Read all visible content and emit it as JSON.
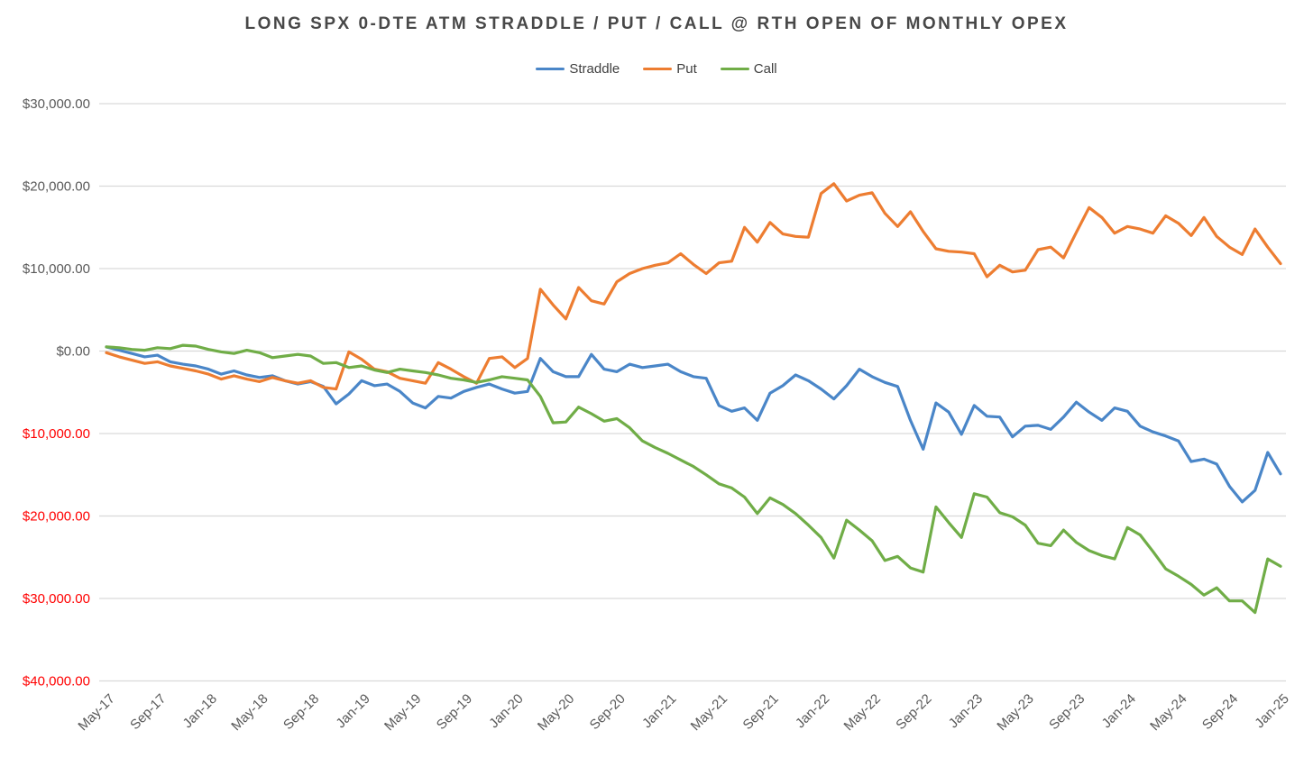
{
  "chart_data": {
    "type": "line",
    "title": "LONG SPX 0-DTE ATM STRADDLE / PUT / CALL @ RTH OPEN OF MONTHLY OPEX",
    "legend_position": "top",
    "grid": true,
    "colors": {
      "grid": "#d9d9d9",
      "axis_text": "#595959",
      "negative_axis_text": "#ff0000",
      "title_text": "#484848"
    },
    "y_axis": {
      "min": -40000,
      "max": 30000,
      "step": 10000,
      "ticks": [
        {
          "value": 30000,
          "label": "$30,000.00",
          "negative": false
        },
        {
          "value": 20000,
          "label": "$20,000.00",
          "negative": false
        },
        {
          "value": 10000,
          "label": "$10,000.00",
          "negative": false
        },
        {
          "value": 0,
          "label": "$0.00",
          "negative": false
        },
        {
          "value": -10000,
          "label": "$10,000.00",
          "negative": true
        },
        {
          "value": -20000,
          "label": "$20,000.00",
          "negative": true
        },
        {
          "value": -30000,
          "label": "$30,000.00",
          "negative": true
        },
        {
          "value": -40000,
          "label": "$40,000.00",
          "negative": true
        }
      ]
    },
    "x_axis": {
      "tick_every": 4,
      "categories": [
        "May-17",
        "Jun-17",
        "Jul-17",
        "Aug-17",
        "Sep-17",
        "Oct-17",
        "Nov-17",
        "Dec-17",
        "Jan-18",
        "Feb-18",
        "Mar-18",
        "Apr-18",
        "May-18",
        "Jun-18",
        "Jul-18",
        "Aug-18",
        "Sep-18",
        "Oct-18",
        "Nov-18",
        "Dec-18",
        "Jan-19",
        "Feb-19",
        "Mar-19",
        "Apr-19",
        "May-19",
        "Jun-19",
        "Jul-19",
        "Aug-19",
        "Sep-19",
        "Oct-19",
        "Nov-19",
        "Dec-19",
        "Jan-20",
        "Feb-20",
        "Mar-20",
        "Apr-20",
        "May-20",
        "Jun-20",
        "Jul-20",
        "Aug-20",
        "Sep-20",
        "Oct-20",
        "Nov-20",
        "Dec-20",
        "Jan-21",
        "Feb-21",
        "Mar-21",
        "Apr-21",
        "May-21",
        "Jun-21",
        "Jul-21",
        "Aug-21",
        "Sep-21",
        "Oct-21",
        "Nov-21",
        "Dec-21",
        "Jan-22",
        "Feb-22",
        "Mar-22",
        "Apr-22",
        "May-22",
        "Jun-22",
        "Jul-22",
        "Aug-22",
        "Sep-22",
        "Oct-22",
        "Nov-22",
        "Dec-22",
        "Jan-23",
        "Feb-23",
        "Mar-23",
        "Apr-23",
        "May-23",
        "Jun-23",
        "Jul-23",
        "Aug-23",
        "Sep-23",
        "Oct-23",
        "Nov-23",
        "Dec-23",
        "Jan-24",
        "Feb-24",
        "Mar-24",
        "Apr-24",
        "May-24",
        "Jun-24",
        "Jul-24",
        "Aug-24",
        "Sep-24",
        "Oct-24",
        "Nov-24",
        "Dec-24",
        "Jan-25"
      ]
    },
    "series": [
      {
        "name": "Straddle",
        "color": "#4a86c8",
        "values": [
          500,
          100,
          -300,
          -700,
          -500,
          -1300,
          -1600,
          -1800,
          -2200,
          -2800,
          -2400,
          -2900,
          -3200,
          -3000,
          -3600,
          -4000,
          -3700,
          -4300,
          -6400,
          -5200,
          -3600,
          -4200,
          -4000,
          -4900,
          -6300,
          -6900,
          -5500,
          -5700,
          -4900,
          -4400,
          -4000,
          -4600,
          -5100,
          -4900,
          -900,
          -2500,
          -3100,
          -3100,
          -400,
          -2200,
          -2500,
          -1600,
          -2000,
          -1800,
          -1600,
          -2500,
          -3100,
          -3300,
          -6600,
          -7300,
          -6900,
          -8400,
          -5100,
          -4200,
          -2900,
          -3600,
          -4600,
          -5800,
          -4200,
          -2200,
          -3100,
          -3800,
          -4300,
          -8400,
          -11900,
          -6300,
          -7400,
          -10100,
          -6600,
          -7900,
          -8000,
          -10400,
          -9100,
          -9000,
          -9500,
          -8000,
          -6200,
          -7400,
          -8400,
          -6900,
          -7300,
          -9100,
          -9800,
          -10300,
          -10900,
          -13400,
          -13100,
          -13700,
          -16400,
          -18300,
          -16900,
          -12300,
          -14900
        ]
      },
      {
        "name": "Put",
        "color": "#ed7d31",
        "values": [
          -200,
          -700,
          -1100,
          -1500,
          -1300,
          -1800,
          -2100,
          -2400,
          -2800,
          -3400,
          -3000,
          -3400,
          -3700,
          -3200,
          -3600,
          -3900,
          -3600,
          -4400,
          -4600,
          -100,
          -1000,
          -2200,
          -2500,
          -3300,
          -3600,
          -3900,
          -1400,
          -2200,
          -3100,
          -3900,
          -900,
          -700,
          -2000,
          -900,
          7500,
          5600,
          3900,
          7700,
          6100,
          5700,
          8400,
          9400,
          10000,
          10400,
          10700,
          11800,
          10500,
          9400,
          10700,
          10900,
          15000,
          13200,
          15600,
          14200,
          13900,
          13800,
          19100,
          20300,
          18200,
          18900,
          19200,
          16700,
          15100,
          16900,
          14500,
          12400,
          12100,
          12000,
          11800,
          9000,
          10400,
          9600,
          9800,
          12300,
          12600,
          11300,
          14400,
          17400,
          16200,
          14300,
          15100,
          14800,
          14300,
          16400,
          15500,
          14000,
          16200,
          13900,
          12600,
          11700,
          14800,
          12600,
          10600
        ]
      },
      {
        "name": "Call",
        "color": "#70ad47",
        "values": [
          500,
          400,
          200,
          100,
          400,
          300,
          700,
          600,
          200,
          -100,
          -300,
          100,
          -200,
          -800,
          -600,
          -400,
          -600,
          -1500,
          -1400,
          -2000,
          -1800,
          -2300,
          -2600,
          -2200,
          -2400,
          -2600,
          -2900,
          -3300,
          -3500,
          -3800,
          -3500,
          -3100,
          -3300,
          -3500,
          -5500,
          -8700,
          -8600,
          -6800,
          -7600,
          -8500,
          -8200,
          -9300,
          -10900,
          -11700,
          -12400,
          -13200,
          -14000,
          -15000,
          -16100,
          -16600,
          -17700,
          -19700,
          -17800,
          -18600,
          -19700,
          -21100,
          -22600,
          -25100,
          -20500,
          -21700,
          -23000,
          -25400,
          -24900,
          -26300,
          -26800,
          -18900,
          -20800,
          -22600,
          -17300,
          -17700,
          -19600,
          -20100,
          -21100,
          -23300,
          -23600,
          -21700,
          -23200,
          -24200,
          -24800,
          -25200,
          -21400,
          -22300,
          -24300,
          -26400,
          -27300,
          -28300,
          -29600,
          -28700,
          -30300,
          -30300,
          -31700,
          -25200,
          -26100
        ]
      }
    ]
  }
}
